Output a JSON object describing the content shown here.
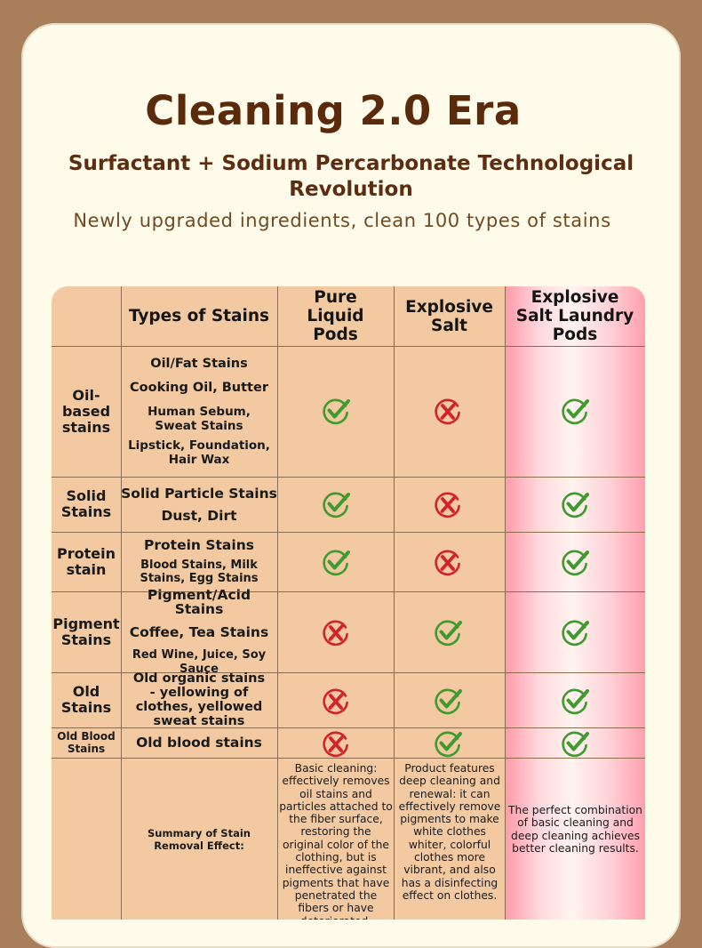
{
  "title": "Cleaning 2.0 Era",
  "subtitle": "Surfactant + Sodium Percarbonate Technological Revolution",
  "tagline": "Newly upgraded ingredients, clean 100 types of stains",
  "colors": {
    "check": "#3f9a2f",
    "cross": "#d0242c",
    "header_text": "#5a2a0b",
    "table_bg": "#f2c9a0",
    "highlight": "#ff9fae"
  },
  "table": {
    "headers": [
      "",
      "Types of Stains",
      "Pure Liquid Pods",
      "Explosive Salt",
      "Explosive Salt Laundry Pods"
    ],
    "rows": [
      {
        "category": "Oil-based stains",
        "stains": [
          "Oil/Fat Stains",
          "Cooking Oil, Butter",
          "Human Sebum, Sweat Stains",
          "Lipstick, Foundation, Hair Wax"
        ],
        "results": [
          "check-icon",
          "cross-icon",
          "check-icon"
        ]
      },
      {
        "category": "Solid Stains",
        "stains": [
          "Solid Particle Stains",
          "Dust, Dirt"
        ],
        "results": [
          "check-icon",
          "cross-icon",
          "check-icon"
        ]
      },
      {
        "category": "Protein stain",
        "stains": [
          "Protein Stains",
          "Blood Stains, Milk Stains, Egg Stains"
        ],
        "results": [
          "check-icon",
          "cross-icon",
          "check-icon"
        ]
      },
      {
        "category": "Pigment Stains",
        "stains": [
          "Pigment/Acid Stains",
          "Coffee, Tea Stains",
          "Red Wine, Juice, Soy Sauce"
        ],
        "results": [
          "cross-icon",
          "check-icon",
          "check-icon"
        ]
      },
      {
        "category": "Old Stains",
        "stains": [
          "Old organic stains - yellowing of clothes, yellowed sweat stains"
        ],
        "results": [
          "cross-icon",
          "check-icon",
          "check-icon"
        ]
      },
      {
        "category": "Old Blood Stains",
        "stains": [
          "Old blood stains"
        ],
        "results": [
          "cross-icon",
          "check-icon",
          "check-icon"
        ]
      }
    ],
    "summary": {
      "label": "Summary of Stain Removal Effect:",
      "pure_liquid_pods": "Basic cleaning: effectively removes oil stains and particles attached to the fiber surface, restoring the original color of the clothing, but is ineffective against pigments that have penetrated the fibers or have deteriorated.",
      "explosive_salt": "Product features deep cleaning and renewal: it can effectively remove pigments to make white clothes whiter, colorful clothes more vibrant, and also has a disinfecting effect on clothes.",
      "laundry_pods": "The perfect combination of basic cleaning and deep cleaning achieves better cleaning results."
    }
  }
}
